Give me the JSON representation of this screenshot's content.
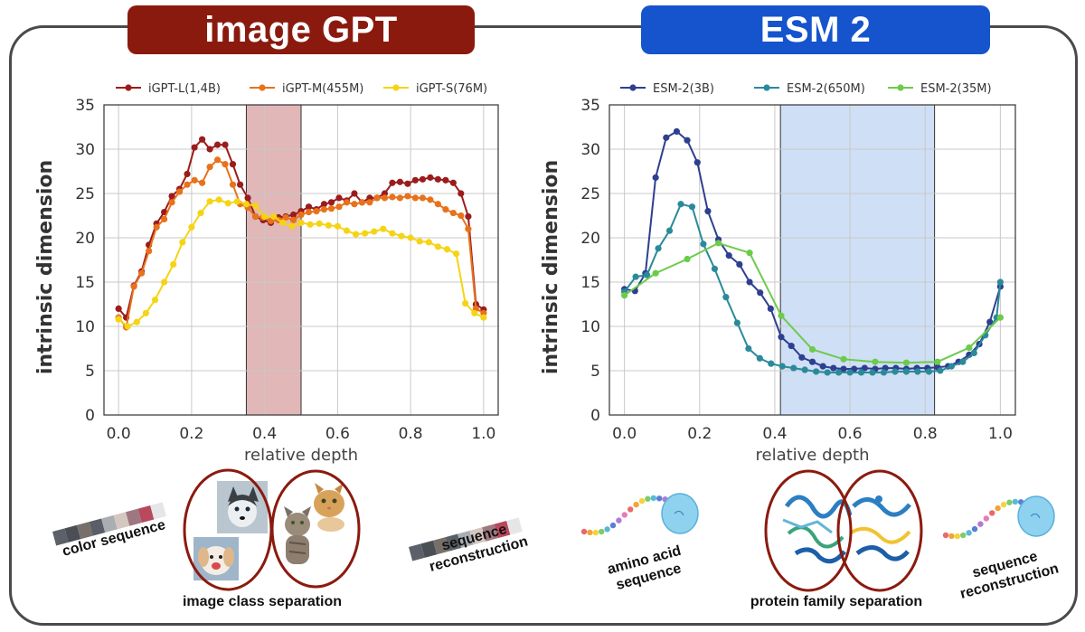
{
  "panels": {
    "left": {
      "banner": "image GPT",
      "banner_color": "#8b1a0e"
    },
    "right": {
      "banner": "ESM 2",
      "banner_color": "#1554cc"
    }
  },
  "captions": {
    "color_sequence": "color sequence",
    "image_class_separation": "image class separation",
    "sequence_reconstruction_left_1": "sequence",
    "sequence_reconstruction_left_2": "reconstruction",
    "amino_acid_1": "amino acid",
    "amino_acid_2": "sequence",
    "protein_family_separation": "protein family separation",
    "sequence_reconstruction_right_1": "sequence",
    "sequence_reconstruction_right_2": "reconstruction"
  },
  "chart_data": [
    {
      "type": "line",
      "title": "",
      "xlabel": "relative depth",
      "ylabel": "intrinsic dimension",
      "xlim": [
        -0.04,
        1.04
      ],
      "ylim": [
        0,
        35
      ],
      "xticks": [
        0.0,
        0.2,
        0.4,
        0.6,
        0.8,
        1.0
      ],
      "xtick_labels": [
        "0.0",
        "0.2",
        "0.4",
        "0.6",
        "0.8",
        "1.0"
      ],
      "yticks": [
        0,
        5,
        10,
        15,
        20,
        25,
        30,
        35
      ],
      "grid": true,
      "legend": "top",
      "shaded_region": {
        "x0": 0.35,
        "x1": 0.5,
        "color": "#c97c7c"
      },
      "series": [
        {
          "name": "iGPT-L(1,4B)",
          "color": "#9b1c1c",
          "x": [
            0.0,
            0.021,
            0.042,
            0.063,
            0.083,
            0.104,
            0.125,
            0.146,
            0.167,
            0.188,
            0.208,
            0.229,
            0.25,
            0.271,
            0.292,
            0.313,
            0.333,
            0.354,
            0.375,
            0.396,
            0.417,
            0.438,
            0.458,
            0.479,
            0.5,
            0.521,
            0.542,
            0.563,
            0.583,
            0.604,
            0.625,
            0.646,
            0.667,
            0.688,
            0.708,
            0.729,
            0.75,
            0.771,
            0.792,
            0.813,
            0.833,
            0.854,
            0.875,
            0.896,
            0.917,
            0.938,
            0.958,
            0.979,
            1.0
          ],
          "y": [
            12.0,
            11.0,
            14.6,
            16.2,
            19.2,
            21.6,
            22.9,
            24.7,
            25.5,
            27.2,
            30.2,
            31.1,
            30.0,
            30.5,
            30.5,
            28.3,
            26.0,
            24.5,
            22.4,
            22.0,
            21.7,
            22.3,
            22.4,
            22.6,
            23.0,
            23.5,
            23.2,
            23.8,
            24.0,
            24.5,
            24.2,
            25.0,
            24.0,
            24.5,
            24.5,
            25.0,
            26.2,
            26.3,
            26.1,
            26.5,
            26.6,
            26.8,
            26.6,
            26.5,
            26.2,
            25.0,
            22.4,
            12.5,
            11.9
          ]
        },
        {
          "name": "iGPT-M(455M)",
          "color": "#e8721c",
          "x": [
            0.0,
            0.021,
            0.042,
            0.063,
            0.083,
            0.104,
            0.125,
            0.146,
            0.167,
            0.188,
            0.208,
            0.229,
            0.25,
            0.271,
            0.292,
            0.313,
            0.333,
            0.354,
            0.375,
            0.396,
            0.417,
            0.438,
            0.458,
            0.479,
            0.5,
            0.521,
            0.542,
            0.563,
            0.583,
            0.604,
            0.625,
            0.646,
            0.667,
            0.688,
            0.708,
            0.729,
            0.75,
            0.771,
            0.792,
            0.813,
            0.833,
            0.854,
            0.875,
            0.896,
            0.917,
            0.938,
            0.958,
            0.979,
            1.0
          ],
          "y": [
            11.0,
            9.9,
            14.5,
            16.0,
            18.5,
            21.2,
            22.1,
            24.0,
            25.2,
            26.0,
            26.5,
            26.2,
            28.0,
            28.8,
            28.3,
            26.0,
            23.8,
            23.4,
            22.4,
            22.3,
            21.9,
            22.0,
            22.3,
            22.0,
            22.6,
            22.9,
            23.0,
            23.2,
            23.3,
            23.5,
            24.0,
            23.8,
            24.0,
            24.0,
            24.5,
            24.5,
            24.6,
            24.5,
            24.7,
            24.5,
            24.5,
            24.3,
            23.8,
            23.2,
            22.8,
            22.5,
            21.0,
            12.0,
            11.5
          ]
        },
        {
          "name": "iGPT-S(76M)",
          "color": "#f5d416",
          "x": [
            0.0,
            0.025,
            0.05,
            0.075,
            0.1,
            0.125,
            0.15,
            0.175,
            0.2,
            0.225,
            0.25,
            0.275,
            0.3,
            0.325,
            0.35,
            0.375,
            0.4,
            0.425,
            0.45,
            0.475,
            0.5,
            0.525,
            0.55,
            0.575,
            0.6,
            0.625,
            0.65,
            0.675,
            0.7,
            0.725,
            0.75,
            0.775,
            0.8,
            0.825,
            0.85,
            0.875,
            0.9,
            0.925,
            0.95,
            0.975,
            1.0
          ],
          "y": [
            10.8,
            10.0,
            10.5,
            11.5,
            13.0,
            15.0,
            17.0,
            19.5,
            21.2,
            22.8,
            24.1,
            24.3,
            23.9,
            24.1,
            23.8,
            23.6,
            22.4,
            22.4,
            21.7,
            21.3,
            21.7,
            21.5,
            21.6,
            21.4,
            21.3,
            20.8,
            20.4,
            20.5,
            20.7,
            21.0,
            20.5,
            20.2,
            20.0,
            19.6,
            19.5,
            19.0,
            18.7,
            18.2,
            12.6,
            11.5,
            11.0
          ]
        }
      ]
    },
    {
      "type": "line",
      "title": "",
      "xlabel": "relative depth",
      "ylabel": "intrinsic dimension",
      "xlim": [
        -0.04,
        1.04
      ],
      "ylim": [
        0,
        35
      ],
      "xticks": [
        0.0,
        0.2,
        0.4,
        0.6,
        0.8,
        1.0
      ],
      "xtick_labels": [
        "0.0",
        "0.2",
        "0.4",
        "0.6",
        "0.8",
        "1.0"
      ],
      "yticks": [
        0,
        5,
        10,
        15,
        20,
        25,
        30,
        35
      ],
      "grid": true,
      "legend": "top",
      "shaded_region": {
        "x0": 0.415,
        "x1": 0.825,
        "color": "#a8c4ec"
      },
      "series": [
        {
          "name": "ESM-2(3B)",
          "color": "#2e3f8f",
          "x": [
            0.0,
            0.028,
            0.056,
            0.083,
            0.111,
            0.139,
            0.167,
            0.194,
            0.222,
            0.25,
            0.278,
            0.306,
            0.333,
            0.361,
            0.389,
            0.417,
            0.444,
            0.472,
            0.5,
            0.528,
            0.556,
            0.583,
            0.611,
            0.639,
            0.667,
            0.694,
            0.722,
            0.75,
            0.778,
            0.806,
            0.833,
            0.861,
            0.889,
            0.917,
            0.944,
            0.972,
            1.0
          ],
          "y": [
            14.2,
            14.0,
            16.0,
            26.8,
            31.3,
            32.0,
            31.0,
            28.5,
            23.0,
            19.8,
            18.0,
            17.0,
            15.0,
            13.8,
            12.0,
            8.8,
            7.8,
            6.5,
            6.0,
            5.5,
            5.3,
            5.2,
            5.2,
            5.3,
            5.2,
            5.3,
            5.3,
            5.2,
            5.3,
            5.3,
            5.4,
            5.5,
            6.0,
            6.8,
            8.0,
            10.5,
            14.5
          ]
        },
        {
          "name": "ESM-2(650M)",
          "color": "#2a8a9a",
          "x": [
            0.0,
            0.03,
            0.06,
            0.09,
            0.12,
            0.15,
            0.18,
            0.21,
            0.24,
            0.27,
            0.3,
            0.33,
            0.36,
            0.39,
            0.42,
            0.45,
            0.48,
            0.51,
            0.54,
            0.57,
            0.6,
            0.63,
            0.66,
            0.69,
            0.72,
            0.75,
            0.78,
            0.81,
            0.84,
            0.87,
            0.9,
            0.93,
            0.96,
            0.99,
            1.0
          ],
          "y": [
            13.9,
            15.6,
            15.8,
            18.8,
            20.8,
            23.8,
            23.5,
            19.3,
            16.5,
            13.3,
            10.4,
            7.5,
            6.4,
            5.8,
            5.5,
            5.3,
            5.1,
            4.9,
            4.8,
            4.8,
            4.8,
            4.8,
            4.8,
            4.8,
            4.9,
            4.9,
            4.9,
            4.9,
            5.0,
            5.5,
            6.0,
            7.0,
            9.0,
            11.0,
            15.0
          ]
        },
        {
          "name": "ESM-2(35M)",
          "color": "#6ccb4c",
          "x": [
            0.0,
            0.083,
            0.167,
            0.25,
            0.333,
            0.417,
            0.5,
            0.583,
            0.667,
            0.75,
            0.833,
            0.917,
            1.0
          ],
          "y": [
            13.5,
            16.0,
            17.6,
            19.4,
            18.3,
            11.2,
            7.4,
            6.3,
            6.0,
            5.9,
            6.0,
            7.6,
            11.0
          ]
        }
      ]
    }
  ]
}
